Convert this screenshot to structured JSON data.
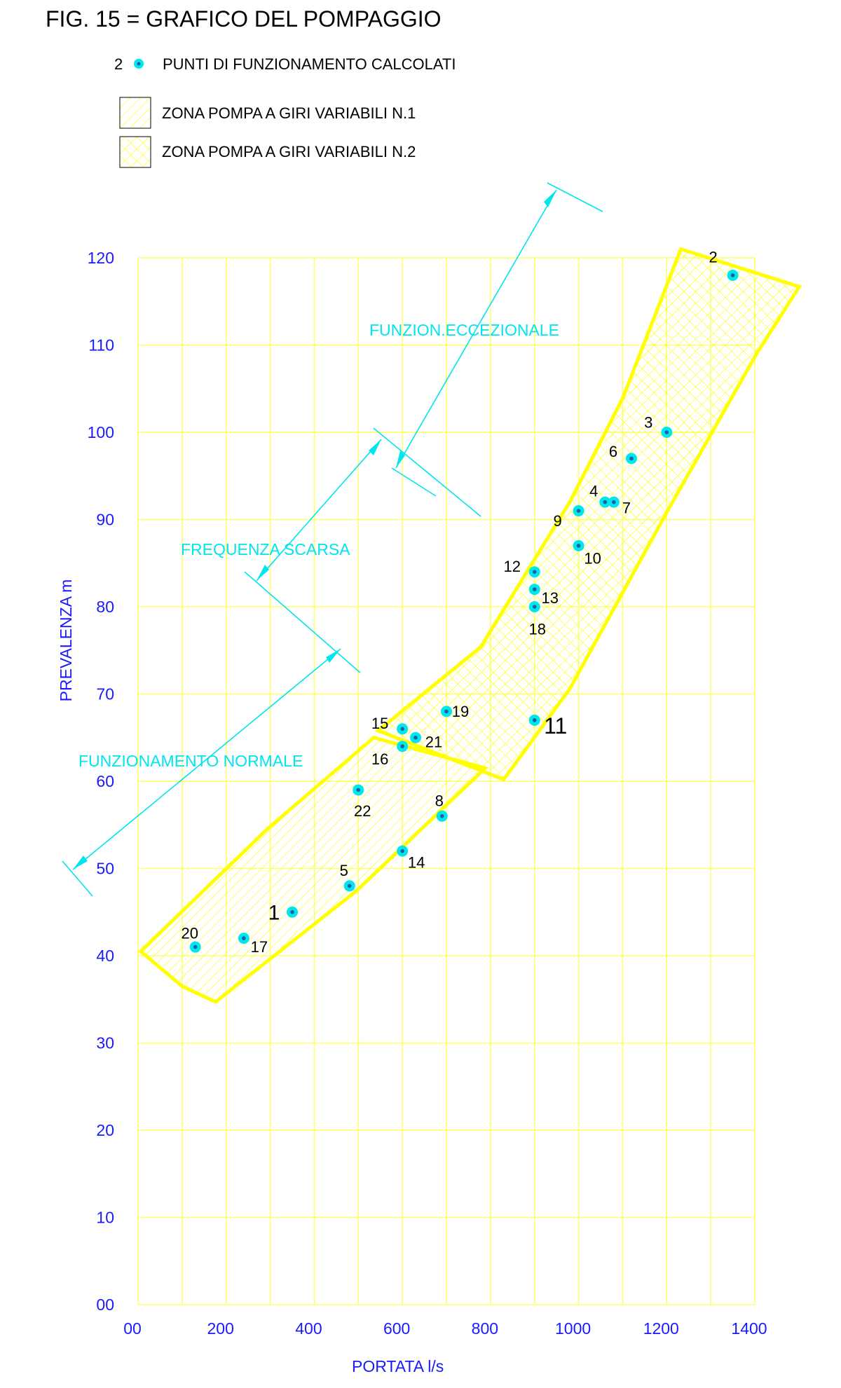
{
  "chart_data": {
    "type": "scatter",
    "title": "FIG. 15 = GRAFICO DEL POMPAGGIO",
    "x_label": "PORTATA l/s",
    "y_label": "PREVALENZA m",
    "legend_marker_label": "2",
    "legend_marker_text": "PUNTI DI FUNZIONAMENTO CALCOLATI",
    "annotations": [
      "FUNZION.ECCEZIONALE",
      "FREQUENZA SCARSA",
      "FUNZIONAMENTO NORMALE"
    ],
    "xlim": [
      0,
      1400
    ],
    "ylim": [
      0,
      120
    ],
    "xticks": [
      {
        "value": 0,
        "label": "00"
      },
      200,
      400,
      600,
      800,
      1000,
      1200,
      1400
    ],
    "yticks": [
      {
        "value": 0,
        "label": "00"
      },
      10,
      20,
      30,
      40,
      50,
      60,
      70,
      80,
      90,
      100,
      110,
      120
    ],
    "x_gridlines": [
      0,
      100,
      200,
      300,
      400,
      500,
      600,
      700,
      800,
      900,
      1000,
      1100,
      1200,
      1300,
      1400
    ],
    "grid": true,
    "grid_color": "#ffff66",
    "marker_color": "#00e5ee",
    "zones": [
      {
        "name": "ZONA POMPA A GIRI VARIABILI N.1",
        "color": "#ffff00",
        "pattern": "single",
        "x": [
          6,
          100,
          176,
          495,
          788,
          535,
          293
        ],
        "y": [
          40.5,
          36.5,
          34.7,
          47.4,
          61.5,
          65,
          54.5
        ]
      },
      {
        "name": "ZONA POMPA A GIRI VARIABILI N.2",
        "color": "#ffff00",
        "pattern": "cross",
        "x": [
          545,
          830,
          980,
          1202,
          1404,
          1501,
          1232,
          1101,
          980,
          778
        ],
        "y": [
          65.8,
          60.2,
          70.6,
          91,
          109,
          116.7,
          121,
          104,
          92,
          75.4
        ]
      }
    ],
    "labels": [
      "1",
      "2",
      "3",
      "4",
      "5",
      "6",
      "7",
      "8",
      "9",
      "10",
      "11",
      "12",
      "13",
      "14",
      "15",
      "16",
      "17",
      "18",
      "19",
      "20",
      "21",
      "22"
    ],
    "x": [
      350,
      1350,
      1200,
      1060,
      480,
      1120,
      1080,
      690,
      1000,
      1000,
      900,
      900,
      900,
      600,
      600,
      600,
      240,
      900,
      700,
      130,
      630,
      500
    ],
    "y": [
      45,
      118,
      100,
      92,
      48,
      97,
      92,
      56,
      91,
      87,
      67,
      84,
      82,
      52,
      66,
      64,
      42,
      80,
      68,
      41,
      65,
      59
    ]
  }
}
